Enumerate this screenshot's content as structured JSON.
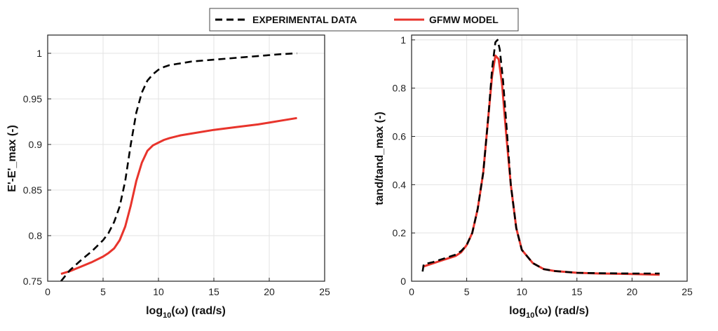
{
  "legend": {
    "entries": [
      {
        "label": "EXPERIMENTAL DATA",
        "color": "#000000",
        "dash": "dashed"
      },
      {
        "label": "GFMW MODEL",
        "color": "#e8342c",
        "dash": "solid"
      }
    ],
    "placement": "top-center"
  },
  "chart_data": [
    {
      "type": "line",
      "title": "",
      "xlabel": "log",
      "xlabel_sub": "10",
      "xlabel_rest": "(ω) (rad/s)",
      "ylabel": "E'-E'_max (-)",
      "xlim": [
        0,
        25
      ],
      "ylim": [
        0.75,
        1.02
      ],
      "xticks": [
        "0",
        "5",
        "10",
        "15",
        "20",
        "25"
      ],
      "yticks": [
        "0.75",
        "0.8",
        "0.85",
        "0.9",
        "0.95",
        "1"
      ],
      "grid": true,
      "series": [
        {
          "name": "EXPERIMENTAL DATA",
          "color": "#000000",
          "x": [
            1.2,
            2,
            3,
            4,
            5,
            5.5,
            6,
            6.5,
            7,
            7.5,
            8,
            8.5,
            9,
            9.5,
            10,
            10.5,
            11,
            12,
            13,
            15,
            17,
            19,
            21,
            22.5
          ],
          "y": [
            0.75,
            0.762,
            0.773,
            0.783,
            0.795,
            0.803,
            0.815,
            0.832,
            0.86,
            0.9,
            0.935,
            0.957,
            0.97,
            0.977,
            0.982,
            0.985,
            0.987,
            0.989,
            0.991,
            0.993,
            0.995,
            0.997,
            0.999,
            1.0
          ]
        },
        {
          "name": "GFMW MODEL",
          "color": "#e8342c",
          "x": [
            1.2,
            2,
            3,
            4,
            5,
            5.5,
            6,
            6.5,
            7,
            7.5,
            8,
            8.5,
            9,
            9.5,
            10,
            10.5,
            11,
            12,
            13,
            15,
            17,
            19,
            21,
            22.5
          ],
          "y": [
            0.758,
            0.761,
            0.766,
            0.771,
            0.777,
            0.781,
            0.786,
            0.795,
            0.81,
            0.833,
            0.86,
            0.88,
            0.893,
            0.899,
            0.902,
            0.905,
            0.907,
            0.91,
            0.912,
            0.916,
            0.919,
            0.922,
            0.926,
            0.929
          ]
        }
      ]
    },
    {
      "type": "line",
      "title": "",
      "xlabel": "log",
      "xlabel_sub": "10",
      "xlabel_rest": "(ω) (rad/s)",
      "ylabel": "tand/tand_max (-)",
      "xlim": [
        0,
        25
      ],
      "ylim": [
        0,
        1.02
      ],
      "xticks": [
        "0",
        "5",
        "10",
        "15",
        "20",
        "25"
      ],
      "yticks": [
        "0",
        "0.2",
        "0.4",
        "0.6",
        "0.8",
        "1"
      ],
      "grid": true,
      "series": [
        {
          "name": "EXPERIMENTAL DATA",
          "color": "#000000",
          "x": [
            1,
            1.1,
            2,
            3,
            4,
            4.5,
            5,
            5.5,
            6,
            6.5,
            7,
            7.3,
            7.6,
            7.8,
            8,
            8.3,
            8.6,
            9,
            9.5,
            10,
            11,
            12,
            13,
            15,
            17,
            20,
            22.5
          ],
          "y": [
            0.04,
            0.07,
            0.08,
            0.095,
            0.11,
            0.125,
            0.15,
            0.2,
            0.3,
            0.45,
            0.7,
            0.88,
            0.99,
            1.0,
            0.96,
            0.83,
            0.65,
            0.4,
            0.22,
            0.13,
            0.075,
            0.05,
            0.042,
            0.035,
            0.033,
            0.032,
            0.032
          ]
        },
        {
          "name": "GFMW MODEL",
          "color": "#e8342c",
          "x": [
            1,
            2,
            3,
            4,
            4.5,
            5,
            5.5,
            6,
            6.5,
            7,
            7.3,
            7.6,
            7.9,
            8.2,
            8.6,
            9,
            9.5,
            10,
            11,
            12,
            13,
            15,
            17,
            20,
            22.5
          ],
          "y": [
            0.06,
            0.075,
            0.09,
            0.105,
            0.12,
            0.15,
            0.2,
            0.3,
            0.45,
            0.7,
            0.85,
            0.935,
            0.92,
            0.82,
            0.6,
            0.4,
            0.22,
            0.13,
            0.075,
            0.05,
            0.042,
            0.035,
            0.032,
            0.03,
            0.027
          ]
        }
      ]
    }
  ]
}
